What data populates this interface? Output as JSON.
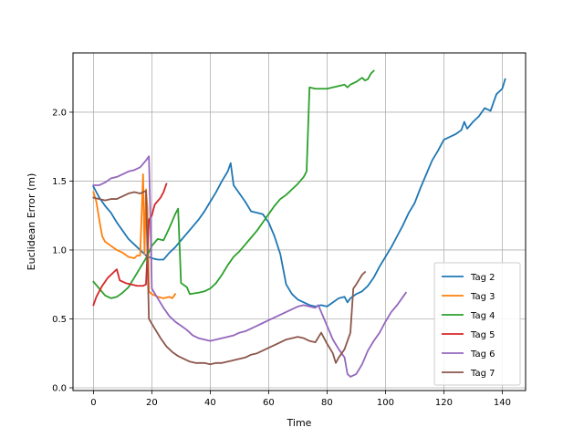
{
  "chart_data": {
    "type": "line",
    "title": "",
    "xlabel": "Time",
    "ylabel": "Euclidean Error (m)",
    "xlim": [
      -7,
      148
    ],
    "ylim": [
      -0.02,
      2.43
    ],
    "xticks": [
      0,
      20,
      40,
      60,
      80,
      100,
      120,
      140
    ],
    "yticks": [
      0.0,
      0.5,
      1.0,
      1.5,
      2.0
    ],
    "grid": true,
    "legend_position": "lower-right",
    "series": [
      {
        "name": "Tag 2",
        "color": "#1f77b4",
        "points": [
          [
            0,
            1.46
          ],
          [
            2,
            1.38
          ],
          [
            4,
            1.32
          ],
          [
            6,
            1.27
          ],
          [
            8,
            1.2
          ],
          [
            10,
            1.14
          ],
          [
            12,
            1.08
          ],
          [
            14,
            1.04
          ],
          [
            16,
            1.0
          ],
          [
            18,
            0.96
          ],
          [
            20,
            0.94
          ],
          [
            22,
            0.93
          ],
          [
            24,
            0.93
          ],
          [
            26,
            0.98
          ],
          [
            28,
            1.02
          ],
          [
            30,
            1.07
          ],
          [
            32,
            1.12
          ],
          [
            34,
            1.17
          ],
          [
            36,
            1.22
          ],
          [
            38,
            1.28
          ],
          [
            40,
            1.35
          ],
          [
            42,
            1.42
          ],
          [
            44,
            1.5
          ],
          [
            46,
            1.57
          ],
          [
            47,
            1.63
          ],
          [
            48,
            1.47
          ],
          [
            50,
            1.41
          ],
          [
            52,
            1.35
          ],
          [
            54,
            1.28
          ],
          [
            56,
            1.27
          ],
          [
            58,
            1.26
          ],
          [
            60,
            1.2
          ],
          [
            62,
            1.1
          ],
          [
            64,
            0.97
          ],
          [
            66,
            0.75
          ],
          [
            68,
            0.68
          ],
          [
            70,
            0.64
          ],
          [
            72,
            0.62
          ],
          [
            74,
            0.6
          ],
          [
            76,
            0.59
          ],
          [
            78,
            0.6
          ],
          [
            80,
            0.59
          ],
          [
            82,
            0.62
          ],
          [
            84,
            0.65
          ],
          [
            86,
            0.66
          ],
          [
            87,
            0.62
          ],
          [
            88,
            0.65
          ],
          [
            90,
            0.68
          ],
          [
            92,
            0.7
          ],
          [
            94,
            0.74
          ],
          [
            96,
            0.8
          ],
          [
            98,
            0.88
          ],
          [
            100,
            0.95
          ],
          [
            102,
            1.02
          ],
          [
            104,
            1.1
          ],
          [
            106,
            1.18
          ],
          [
            108,
            1.27
          ],
          [
            110,
            1.34
          ],
          [
            112,
            1.45
          ],
          [
            114,
            1.55
          ],
          [
            116,
            1.65
          ],
          [
            118,
            1.72
          ],
          [
            120,
            1.8
          ],
          [
            122,
            1.82
          ],
          [
            124,
            1.84
          ],
          [
            126,
            1.87
          ],
          [
            127,
            1.93
          ],
          [
            128,
            1.88
          ],
          [
            130,
            1.93
          ],
          [
            132,
            1.97
          ],
          [
            134,
            2.03
          ],
          [
            136,
            2.01
          ],
          [
            138,
            2.13
          ],
          [
            140,
            2.17
          ],
          [
            141,
            2.24
          ]
        ]
      },
      {
        "name": "Tag 3",
        "color": "#ff7f0e",
        "points": [
          [
            0,
            1.42
          ],
          [
            1,
            1.35
          ],
          [
            2,
            1.22
          ],
          [
            3,
            1.1
          ],
          [
            4,
            1.06
          ],
          [
            6,
            1.03
          ],
          [
            8,
            1.0
          ],
          [
            10,
            0.98
          ],
          [
            12,
            0.95
          ],
          [
            14,
            0.94
          ],
          [
            15,
            0.96
          ],
          [
            16,
            0.96
          ],
          [
            17,
            1.55
          ],
          [
            17.5,
            0.97
          ],
          [
            18,
            1.44
          ],
          [
            18.5,
            1.3
          ],
          [
            19,
            0.7
          ],
          [
            20,
            0.68
          ],
          [
            22,
            0.66
          ],
          [
            24,
            0.65
          ],
          [
            26,
            0.66
          ],
          [
            27,
            0.65
          ],
          [
            28,
            0.68
          ]
        ]
      },
      {
        "name": "Tag 4",
        "color": "#2ca02c",
        "points": [
          [
            0,
            0.77
          ],
          [
            2,
            0.72
          ],
          [
            4,
            0.67
          ],
          [
            6,
            0.65
          ],
          [
            8,
            0.66
          ],
          [
            10,
            0.69
          ],
          [
            12,
            0.73
          ],
          [
            14,
            0.8
          ],
          [
            16,
            0.87
          ],
          [
            18,
            0.94
          ],
          [
            20,
            1.03
          ],
          [
            22,
            1.08
          ],
          [
            24,
            1.07
          ],
          [
            26,
            1.16
          ],
          [
            28,
            1.26
          ],
          [
            29,
            1.3
          ],
          [
            30,
            0.76
          ],
          [
            32,
            0.73
          ],
          [
            33,
            0.68
          ],
          [
            36,
            0.69
          ],
          [
            38,
            0.7
          ],
          [
            40,
            0.72
          ],
          [
            42,
            0.76
          ],
          [
            44,
            0.82
          ],
          [
            46,
            0.89
          ],
          [
            48,
            0.95
          ],
          [
            50,
            0.99
          ],
          [
            52,
            1.04
          ],
          [
            54,
            1.09
          ],
          [
            56,
            1.14
          ],
          [
            58,
            1.2
          ],
          [
            60,
            1.26
          ],
          [
            62,
            1.32
          ],
          [
            64,
            1.37
          ],
          [
            66,
            1.4
          ],
          [
            68,
            1.44
          ],
          [
            70,
            1.48
          ],
          [
            72,
            1.53
          ],
          [
            73,
            1.57
          ],
          [
            74,
            2.18
          ],
          [
            76,
            2.17
          ],
          [
            78,
            2.17
          ],
          [
            80,
            2.17
          ],
          [
            82,
            2.18
          ],
          [
            84,
            2.19
          ],
          [
            86,
            2.2
          ],
          [
            87,
            2.18
          ],
          [
            88,
            2.2
          ],
          [
            90,
            2.22
          ],
          [
            92,
            2.25
          ],
          [
            93,
            2.23
          ],
          [
            94,
            2.24
          ],
          [
            95,
            2.28
          ],
          [
            96,
            2.3
          ]
        ]
      },
      {
        "name": "Tag 5",
        "color": "#d62728",
        "points": [
          [
            0,
            0.6
          ],
          [
            1,
            0.66
          ],
          [
            3,
            0.74
          ],
          [
            5,
            0.8
          ],
          [
            7,
            0.84
          ],
          [
            8,
            0.86
          ],
          [
            9,
            0.78
          ],
          [
            11,
            0.76
          ],
          [
            13,
            0.75
          ],
          [
            15,
            0.74
          ],
          [
            17,
            0.74
          ],
          [
            18,
            0.75
          ],
          [
            19,
            1.22
          ],
          [
            20,
            1.25
          ],
          [
            21,
            1.33
          ],
          [
            23,
            1.38
          ],
          [
            24,
            1.42
          ],
          [
            25,
            1.48
          ]
        ]
      },
      {
        "name": "Tag 6",
        "color": "#9467bd",
        "points": [
          [
            0,
            1.47
          ],
          [
            2,
            1.47
          ],
          [
            4,
            1.49
          ],
          [
            6,
            1.52
          ],
          [
            8,
            1.53
          ],
          [
            10,
            1.55
          ],
          [
            12,
            1.57
          ],
          [
            14,
            1.58
          ],
          [
            16,
            1.6
          ],
          [
            18,
            1.65
          ],
          [
            19,
            1.68
          ],
          [
            19.5,
            1.25
          ],
          [
            20,
            0.72
          ],
          [
            22,
            0.65
          ],
          [
            24,
            0.58
          ],
          [
            26,
            0.52
          ],
          [
            28,
            0.48
          ],
          [
            30,
            0.45
          ],
          [
            32,
            0.42
          ],
          [
            34,
            0.38
          ],
          [
            36,
            0.36
          ],
          [
            38,
            0.35
          ],
          [
            40,
            0.34
          ],
          [
            42,
            0.35
          ],
          [
            44,
            0.36
          ],
          [
            46,
            0.37
          ],
          [
            48,
            0.38
          ],
          [
            50,
            0.4
          ],
          [
            52,
            0.41
          ],
          [
            54,
            0.43
          ],
          [
            56,
            0.45
          ],
          [
            58,
            0.47
          ],
          [
            60,
            0.49
          ],
          [
            62,
            0.51
          ],
          [
            64,
            0.53
          ],
          [
            66,
            0.55
          ],
          [
            68,
            0.57
          ],
          [
            70,
            0.59
          ],
          [
            72,
            0.6
          ],
          [
            74,
            0.59
          ],
          [
            76,
            0.58
          ],
          [
            77,
            0.6
          ],
          [
            78,
            0.55
          ],
          [
            80,
            0.45
          ],
          [
            82,
            0.35
          ],
          [
            84,
            0.28
          ],
          [
            86,
            0.22
          ],
          [
            87,
            0.1
          ],
          [
            88,
            0.08
          ],
          [
            90,
            0.1
          ],
          [
            92,
            0.17
          ],
          [
            94,
            0.27
          ],
          [
            96,
            0.34
          ],
          [
            98,
            0.4
          ],
          [
            100,
            0.48
          ],
          [
            102,
            0.55
          ],
          [
            104,
            0.6
          ],
          [
            106,
            0.66
          ],
          [
            107,
            0.69
          ]
        ]
      },
      {
        "name": "Tag 7",
        "color": "#8c564b",
        "points": [
          [
            0,
            1.38
          ],
          [
            2,
            1.37
          ],
          [
            4,
            1.36
          ],
          [
            6,
            1.37
          ],
          [
            8,
            1.37
          ],
          [
            10,
            1.39
          ],
          [
            12,
            1.41
          ],
          [
            14,
            1.42
          ],
          [
            16,
            1.41
          ],
          [
            18,
            1.43
          ],
          [
            19,
            0.5
          ],
          [
            21,
            0.43
          ],
          [
            23,
            0.36
          ],
          [
            25,
            0.3
          ],
          [
            27,
            0.26
          ],
          [
            29,
            0.23
          ],
          [
            31,
            0.21
          ],
          [
            33,
            0.19
          ],
          [
            35,
            0.18
          ],
          [
            38,
            0.18
          ],
          [
            40,
            0.17
          ],
          [
            42,
            0.18
          ],
          [
            44,
            0.18
          ],
          [
            46,
            0.19
          ],
          [
            48,
            0.2
          ],
          [
            50,
            0.21
          ],
          [
            52,
            0.22
          ],
          [
            54,
            0.24
          ],
          [
            56,
            0.25
          ],
          [
            58,
            0.27
          ],
          [
            60,
            0.29
          ],
          [
            62,
            0.31
          ],
          [
            64,
            0.33
          ],
          [
            66,
            0.35
          ],
          [
            68,
            0.36
          ],
          [
            70,
            0.37
          ],
          [
            72,
            0.36
          ],
          [
            74,
            0.34
          ],
          [
            76,
            0.33
          ],
          [
            78,
            0.4
          ],
          [
            80,
            0.32
          ],
          [
            82,
            0.25
          ],
          [
            83,
            0.18
          ],
          [
            84,
            0.22
          ],
          [
            86,
            0.28
          ],
          [
            88,
            0.4
          ],
          [
            89,
            0.72
          ],
          [
            90,
            0.75
          ],
          [
            92,
            0.82
          ],
          [
            93,
            0.84
          ]
        ]
      }
    ]
  }
}
